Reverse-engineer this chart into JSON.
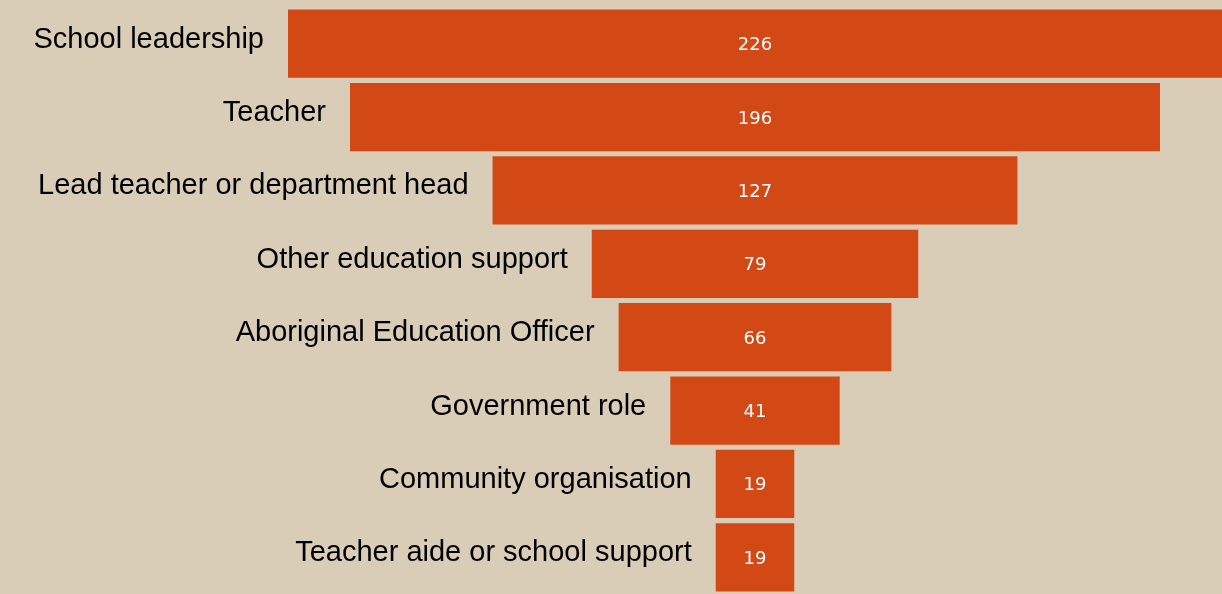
{
  "chart_data": {
    "type": "other",
    "categories": [
      "School leadership",
      "Teacher",
      "Lead teacher or department head",
      "Other education support",
      "Aboriginal Education Officer",
      "Government role",
      "Community organisation",
      "Teacher aide or school support"
    ],
    "values": [
      226,
      196,
      127,
      79,
      66,
      41,
      19,
      19
    ],
    "color": "#d34916",
    "data_labels": true
  }
}
